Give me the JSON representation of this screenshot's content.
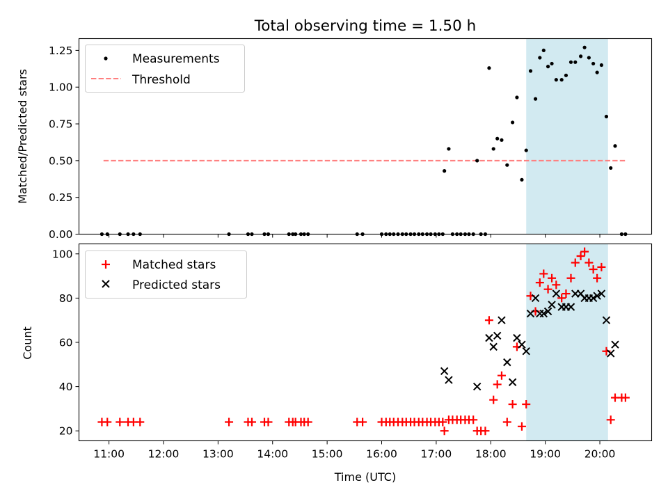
{
  "figure": {
    "title": "Total observing time = 1.50 h",
    "xlabel": "Time (UTC)"
  },
  "colors": {
    "highlight": "#add8e6",
    "measurements": "#000000",
    "threshold": "#ff7f7f",
    "matched": "#ff0000",
    "predicted": "#000000"
  },
  "chart_data": [
    {
      "type": "scatter",
      "ylabel": "Matched/Predicted stars",
      "ylim": [
        0,
        1.33
      ],
      "xlim": [
        10.45,
        20.95
      ],
      "yticks": [
        0,
        0.25,
        0.5,
        0.75,
        1.0,
        1.25
      ],
      "ytick_labels": [
        "0.00",
        "0.25",
        "0.50",
        "0.75",
        "1.00",
        "1.25"
      ],
      "legend_position": "top-left",
      "highlight_span": [
        18.65,
        20.15
      ],
      "threshold": {
        "name": "Threshold",
        "y": 0.5,
        "x_range": [
          10.9,
          20.5
        ]
      },
      "series": [
        {
          "name": "Measurements",
          "marker": "dot",
          "points": [
            [
              10.87,
              0
            ],
            [
              10.97,
              0
            ],
            [
              11.2,
              0
            ],
            [
              11.35,
              0
            ],
            [
              11.45,
              0
            ],
            [
              11.57,
              0
            ],
            [
              13.2,
              0
            ],
            [
              13.55,
              0
            ],
            [
              13.62,
              0
            ],
            [
              13.85,
              0
            ],
            [
              13.92,
              0
            ],
            [
              14.3,
              0
            ],
            [
              14.37,
              0
            ],
            [
              14.42,
              0
            ],
            [
              14.52,
              0
            ],
            [
              14.58,
              0
            ],
            [
              14.65,
              0
            ],
            [
              15.55,
              0
            ],
            [
              15.65,
              0
            ],
            [
              16.0,
              0
            ],
            [
              16.08,
              0
            ],
            [
              16.15,
              0
            ],
            [
              16.22,
              0
            ],
            [
              16.3,
              0
            ],
            [
              16.38,
              0
            ],
            [
              16.45,
              0
            ],
            [
              16.53,
              0
            ],
            [
              16.6,
              0
            ],
            [
              16.68,
              0
            ],
            [
              16.75,
              0
            ],
            [
              16.83,
              0
            ],
            [
              16.9,
              0
            ],
            [
              16.98,
              0
            ],
            [
              17.05,
              0
            ],
            [
              17.12,
              0
            ],
            [
              17.15,
              0.43
            ],
            [
              17.23,
              0.58
            ],
            [
              17.3,
              0
            ],
            [
              17.38,
              0
            ],
            [
              17.45,
              0
            ],
            [
              17.53,
              0
            ],
            [
              17.6,
              0
            ],
            [
              17.68,
              0
            ],
            [
              17.75,
              0.5
            ],
            [
              17.82,
              0
            ],
            [
              17.9,
              0
            ],
            [
              17.97,
              1.13
            ],
            [
              18.05,
              0.58
            ],
            [
              18.12,
              0.65
            ],
            [
              18.2,
              0.64
            ],
            [
              18.3,
              0.47
            ],
            [
              18.4,
              0.76
            ],
            [
              18.48,
              0.93
            ],
            [
              18.57,
              0.37
            ],
            [
              18.65,
              0.57
            ],
            [
              18.73,
              1.11
            ],
            [
              18.82,
              0.92
            ],
            [
              18.9,
              1.2
            ],
            [
              18.97,
              1.25
            ],
            [
              19.05,
              1.14
            ],
            [
              19.12,
              1.16
            ],
            [
              19.2,
              1.05
            ],
            [
              19.3,
              1.05
            ],
            [
              19.38,
              1.08
            ],
            [
              19.47,
              1.17
            ],
            [
              19.55,
              1.17
            ],
            [
              19.65,
              1.21
            ],
            [
              19.72,
              1.27
            ],
            [
              19.8,
              1.2
            ],
            [
              19.88,
              1.16
            ],
            [
              19.95,
              1.1
            ],
            [
              20.03,
              1.15
            ],
            [
              20.12,
              0.8
            ],
            [
              20.2,
              0.45
            ],
            [
              20.28,
              0.6
            ],
            [
              20.4,
              0
            ],
            [
              20.47,
              0
            ]
          ]
        }
      ]
    },
    {
      "type": "scatter",
      "ylabel": "Count",
      "ylim": [
        15.5,
        104.5
      ],
      "xlim": [
        10.45,
        20.95
      ],
      "yticks": [
        20,
        40,
        60,
        80,
        100
      ],
      "ytick_labels": [
        "20",
        "40",
        "60",
        "80",
        "100"
      ],
      "xticks": [
        11,
        12,
        13,
        14,
        15,
        16,
        17,
        18,
        19,
        20
      ],
      "xtick_labels": [
        "11:00",
        "12:00",
        "13:00",
        "14:00",
        "15:00",
        "16:00",
        "17:00",
        "18:00",
        "19:00",
        "20:00"
      ],
      "legend_position": "top-left",
      "highlight_span": [
        18.65,
        20.15
      ],
      "series": [
        {
          "name": "Matched stars",
          "marker": "plus",
          "points": [
            [
              10.87,
              24
            ],
            [
              10.97,
              24
            ],
            [
              11.2,
              24
            ],
            [
              11.35,
              24
            ],
            [
              11.45,
              24
            ],
            [
              11.57,
              24
            ],
            [
              13.2,
              24
            ],
            [
              13.55,
              24
            ],
            [
              13.62,
              24
            ],
            [
              13.85,
              24
            ],
            [
              13.92,
              24
            ],
            [
              14.3,
              24
            ],
            [
              14.37,
              24
            ],
            [
              14.42,
              24
            ],
            [
              14.52,
              24
            ],
            [
              14.58,
              24
            ],
            [
              14.65,
              24
            ],
            [
              15.55,
              24
            ],
            [
              15.65,
              24
            ],
            [
              16.0,
              24
            ],
            [
              16.08,
              24
            ],
            [
              16.15,
              24
            ],
            [
              16.22,
              24
            ],
            [
              16.3,
              24
            ],
            [
              16.38,
              24
            ],
            [
              16.45,
              24
            ],
            [
              16.53,
              24
            ],
            [
              16.6,
              24
            ],
            [
              16.68,
              24
            ],
            [
              16.75,
              24
            ],
            [
              16.83,
              24
            ],
            [
              16.9,
              24
            ],
            [
              16.98,
              24
            ],
            [
              17.05,
              24
            ],
            [
              17.12,
              24
            ],
            [
              17.15,
              20
            ],
            [
              17.23,
              25
            ],
            [
              17.3,
              25
            ],
            [
              17.38,
              25
            ],
            [
              17.45,
              25
            ],
            [
              17.53,
              25
            ],
            [
              17.6,
              25
            ],
            [
              17.68,
              25
            ],
            [
              17.75,
              20
            ],
            [
              17.82,
              20
            ],
            [
              17.9,
              20
            ],
            [
              17.97,
              70
            ],
            [
              18.05,
              34
            ],
            [
              18.12,
              41
            ],
            [
              18.2,
              45
            ],
            [
              18.3,
              24
            ],
            [
              18.4,
              32
            ],
            [
              18.48,
              58
            ],
            [
              18.57,
              22
            ],
            [
              18.65,
              32
            ],
            [
              18.73,
              81
            ],
            [
              18.82,
              74
            ],
            [
              18.9,
              87
            ],
            [
              18.97,
              91
            ],
            [
              19.05,
              84
            ],
            [
              19.12,
              89
            ],
            [
              19.2,
              86
            ],
            [
              19.3,
              80
            ],
            [
              19.38,
              82
            ],
            [
              19.47,
              89
            ],
            [
              19.55,
              96
            ],
            [
              19.65,
              99
            ],
            [
              19.72,
              101
            ],
            [
              19.8,
              96
            ],
            [
              19.88,
              93
            ],
            [
              19.95,
              89
            ],
            [
              20.03,
              94
            ],
            [
              20.12,
              56
            ],
            [
              20.2,
              25
            ],
            [
              20.28,
              35
            ],
            [
              20.4,
              35
            ],
            [
              20.47,
              35
            ]
          ]
        },
        {
          "name": "Predicted stars",
          "marker": "x",
          "points": [
            [
              17.15,
              47
            ],
            [
              17.23,
              43
            ],
            [
              17.75,
              40
            ],
            [
              17.97,
              62
            ],
            [
              18.05,
              58
            ],
            [
              18.12,
              63
            ],
            [
              18.2,
              70
            ],
            [
              18.3,
              51
            ],
            [
              18.4,
              42
            ],
            [
              18.48,
              62
            ],
            [
              18.57,
              59
            ],
            [
              18.65,
              56
            ],
            [
              18.73,
              73
            ],
            [
              18.82,
              80
            ],
            [
              18.9,
              73
            ],
            [
              18.97,
              73
            ],
            [
              19.05,
              74
            ],
            [
              19.12,
              77
            ],
            [
              19.2,
              82
            ],
            [
              19.3,
              76
            ],
            [
              19.38,
              76
            ],
            [
              19.47,
              76
            ],
            [
              19.55,
              82
            ],
            [
              19.65,
              82
            ],
            [
              19.72,
              80
            ],
            [
              19.8,
              80
            ],
            [
              19.88,
              80
            ],
            [
              19.95,
              81
            ],
            [
              20.03,
              82
            ],
            [
              20.12,
              70
            ],
            [
              20.2,
              55
            ],
            [
              20.28,
              59
            ]
          ]
        }
      ]
    }
  ]
}
